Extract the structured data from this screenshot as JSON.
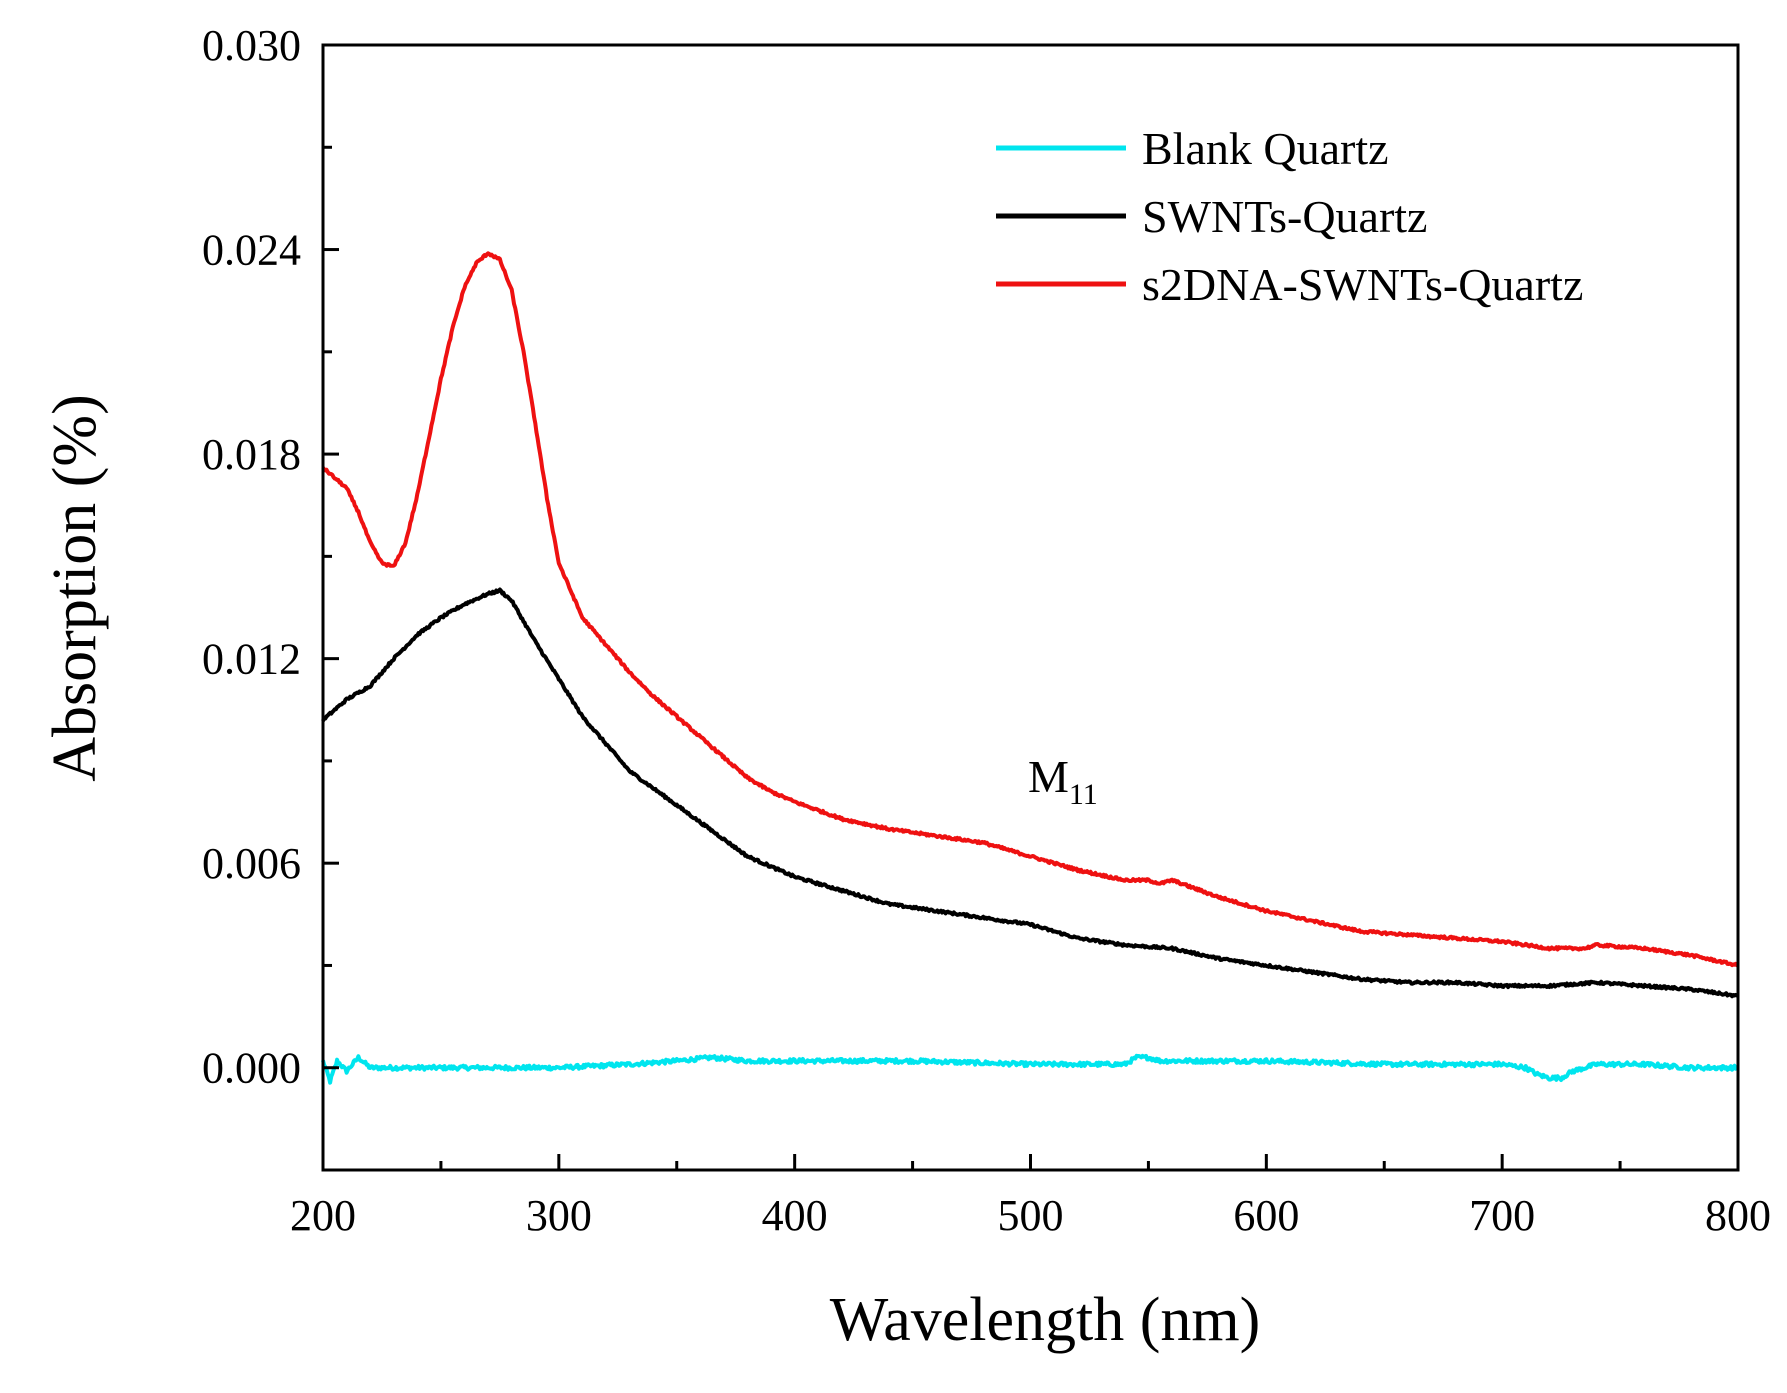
{
  "chart_data": {
    "type": "line",
    "title": "",
    "xlabel": "Wavelength (nm)",
    "ylabel": "Absorption (%)",
    "xlim": [
      200,
      800
    ],
    "ylim": [
      -0.003,
      0.03
    ],
    "x_ticks": [
      200,
      300,
      400,
      500,
      600,
      700,
      800
    ],
    "x_tick_labels": [
      "200",
      "300",
      "400",
      "500",
      "600",
      "700",
      "800"
    ],
    "y_ticks": [
      0.0,
      0.006,
      0.012,
      0.018,
      0.024,
      0.03
    ],
    "y_tick_labels": [
      "0.000",
      "0.006",
      "0.012",
      "0.018",
      "0.024",
      "0.030"
    ],
    "grid": false,
    "legend_position": "top-right",
    "annotations": [
      {
        "text": "M",
        "subscript": "11",
        "x": 500,
        "y": 0.0083
      }
    ],
    "series": [
      {
        "name": "Blank Quartz",
        "color": "#00e5ee",
        "x": [
          200,
          203,
          206,
          210,
          215,
          220,
          230,
          250,
          270,
          300,
          330,
          350,
          365,
          380,
          400,
          450,
          500,
          540,
          545,
          550,
          555,
          600,
          650,
          700,
          710,
          715,
          720,
          725,
          730,
          740,
          760,
          780,
          800
        ],
        "y": [
          0.0002,
          -0.0004,
          0.0002,
          -0.0001,
          0.0003,
          0.0,
          0.0,
          0.0,
          0.0,
          0.0,
          0.0001,
          0.0002,
          0.0003,
          0.0002,
          0.0002,
          0.0002,
          0.0001,
          0.0001,
          0.0003,
          0.0003,
          0.0002,
          0.0002,
          0.0001,
          0.0001,
          0.0,
          -0.0002,
          -0.0003,
          -0.0003,
          -0.0001,
          0.0001,
          0.0001,
          0.0,
          0.0
        ]
      },
      {
        "name": "SWNTs-Quartz",
        "color": "#000000",
        "x": [
          200,
          210,
          220,
          230,
          240,
          250,
          260,
          270,
          275,
          280,
          290,
          300,
          310,
          320,
          330,
          340,
          350,
          360,
          370,
          380,
          390,
          400,
          420,
          440,
          460,
          480,
          500,
          520,
          540,
          560,
          580,
          600,
          620,
          640,
          660,
          680,
          700,
          720,
          740,
          760,
          780,
          800
        ],
        "y": [
          0.0102,
          0.0108,
          0.0112,
          0.012,
          0.0127,
          0.0132,
          0.0136,
          0.0139,
          0.014,
          0.0137,
          0.0125,
          0.0114,
          0.0103,
          0.0095,
          0.0087,
          0.0082,
          0.0077,
          0.0072,
          0.0067,
          0.0062,
          0.0059,
          0.0056,
          0.0052,
          0.0048,
          0.0046,
          0.0044,
          0.0042,
          0.0038,
          0.0036,
          0.0035,
          0.0032,
          0.003,
          0.0028,
          0.0026,
          0.0025,
          0.0025,
          0.0024,
          0.0024,
          0.0025,
          0.0024,
          0.0023,
          0.0021
        ]
      },
      {
        "name": "s2DNA-SWNTs-Quartz",
        "color": "#ee1111",
        "x": [
          200,
          205,
          210,
          215,
          220,
          225,
          230,
          235,
          240,
          245,
          250,
          255,
          260,
          265,
          270,
          275,
          280,
          285,
          290,
          295,
          300,
          310,
          320,
          330,
          340,
          350,
          360,
          370,
          380,
          390,
          400,
          420,
          440,
          460,
          480,
          500,
          520,
          540,
          550,
          555,
          560,
          580,
          600,
          620,
          640,
          660,
          680,
          700,
          720,
          735,
          740,
          760,
          780,
          800
        ],
        "y": [
          0.0176,
          0.0173,
          0.017,
          0.0163,
          0.0154,
          0.0148,
          0.0147,
          0.0154,
          0.0168,
          0.0185,
          0.0202,
          0.0217,
          0.0229,
          0.0236,
          0.0239,
          0.0237,
          0.0228,
          0.021,
          0.0189,
          0.0167,
          0.0148,
          0.0132,
          0.0124,
          0.0116,
          0.0109,
          0.0103,
          0.0097,
          0.0091,
          0.0085,
          0.0081,
          0.0078,
          0.0073,
          0.007,
          0.0068,
          0.0066,
          0.0062,
          0.0058,
          0.0055,
          0.0055,
          0.0054,
          0.0055,
          0.005,
          0.0046,
          0.0043,
          0.004,
          0.0039,
          0.0038,
          0.0037,
          0.0035,
          0.0035,
          0.0036,
          0.0035,
          0.0033,
          0.003
        ]
      }
    ]
  }
}
